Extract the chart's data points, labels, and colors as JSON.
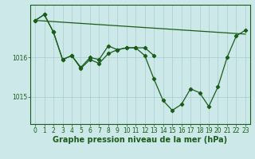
{
  "background_color": "#cce8e8",
  "plot_bg_color": "#cce8e8",
  "line_color": "#1a5c1a",
  "grid_color": "#a8cccc",
  "xlabel": "Graphe pression niveau de la mer (hPa)",
  "xlabel_fontsize": 7,
  "tick_fontsize": 5.5,
  "ylim": [
    1014.3,
    1017.35
  ],
  "xlim": [
    -0.5,
    23.5
  ],
  "yticks": [
    1015,
    1016
  ],
  "xticks": [
    0,
    1,
    2,
    3,
    4,
    5,
    6,
    7,
    8,
    9,
    10,
    11,
    12,
    13,
    14,
    15,
    16,
    17,
    18,
    19,
    20,
    21,
    22,
    23
  ],
  "line1_x": [
    0,
    23
  ],
  "line1_y": [
    1016.95,
    1016.6
  ],
  "line2_x": [
    0,
    1,
    2,
    3,
    4,
    5,
    6,
    7,
    8,
    9,
    10,
    11,
    12,
    13
  ],
  "line2_y": [
    1016.95,
    1017.1,
    1016.65,
    1015.95,
    1016.05,
    1015.75,
    1016.0,
    1015.95,
    1016.3,
    1016.2,
    1016.25,
    1016.25,
    1016.25,
    1016.05
  ],
  "line3_x": [
    0,
    1,
    2,
    3,
    4,
    5,
    6,
    7,
    8,
    9,
    10,
    11,
    12,
    13,
    14,
    15,
    16,
    17,
    18,
    19,
    20,
    21,
    22,
    23
  ],
  "line3_y": [
    1016.95,
    1017.1,
    1016.65,
    1015.95,
    1016.05,
    1015.72,
    1015.95,
    1015.85,
    1016.1,
    1016.2,
    1016.25,
    1016.25,
    1016.05,
    1015.45,
    1014.9,
    1014.65,
    1014.8,
    1015.2,
    1015.1,
    1014.75,
    1015.25,
    1016.0,
    1016.55,
    1016.7
  ]
}
